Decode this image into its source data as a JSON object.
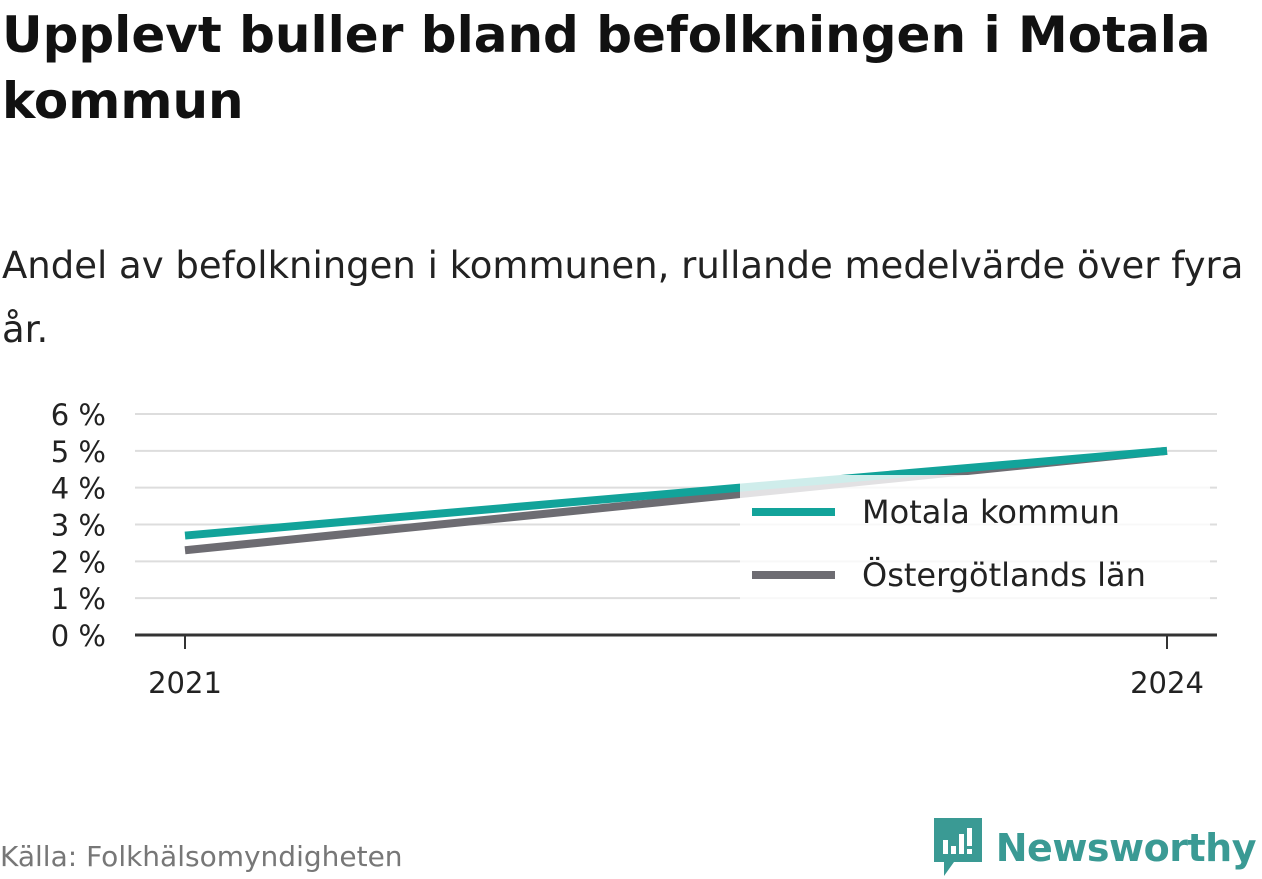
{
  "title": "Upplevt buller bland befolkningen i Motala kommun",
  "subtitle": "Andel av befolkningen i kommunen, rullande medelvärde över fyra år.",
  "source": "Källa: Folkhälsomyndigheten",
  "brand": "Newsworthy",
  "chart_data": {
    "type": "line",
    "x": [
      2021,
      2024
    ],
    "x_tick_labels": [
      "2021",
      "2024"
    ],
    "y_ticks": [
      0,
      1,
      2,
      3,
      4,
      5,
      6
    ],
    "y_tick_labels": [
      "0 %",
      "1 %",
      "2 %",
      "3 %",
      "4 %",
      "5 %",
      "6 %"
    ],
    "ylim": [
      0,
      6
    ],
    "grid": true,
    "legend_position": "bottom-right",
    "series": [
      {
        "name": "Motala kommun",
        "color": "#12a39a",
        "values": [
          2.7,
          5.0
        ]
      },
      {
        "name": "Östergötlands län",
        "color": "#6d6c72",
        "values": [
          2.3,
          5.0
        ]
      }
    ]
  },
  "colors": {
    "brand": "#3a9a94",
    "axis": "#333333",
    "grid": "#dddddd"
  }
}
